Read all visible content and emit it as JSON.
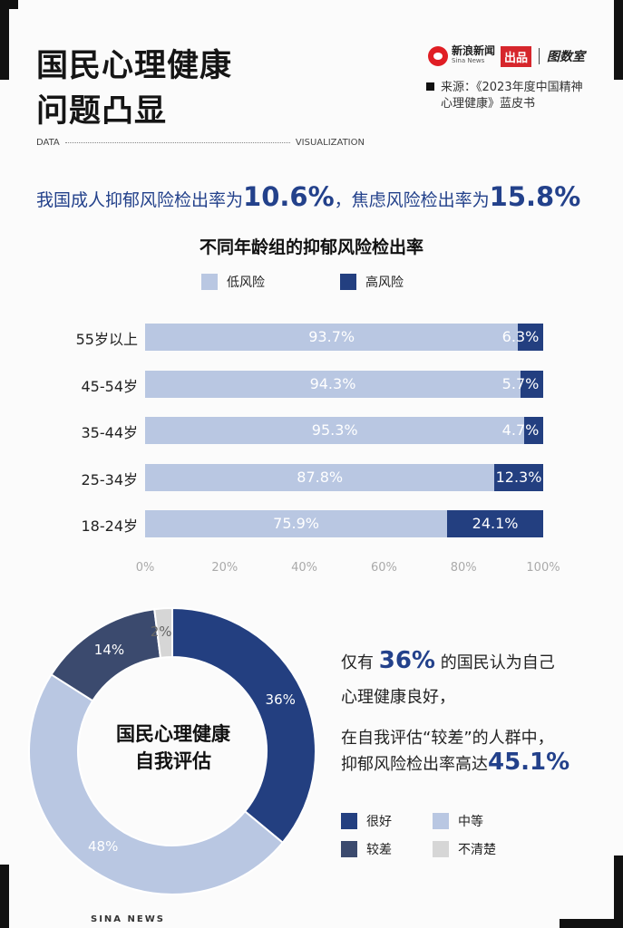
{
  "header": {
    "title_line1": "国民心理健康",
    "title_line2": "问题凸显",
    "brand_sina_cn": "新浪新闻",
    "brand_sina_en": "Sina News",
    "brand_badge": "出品",
    "brand_tushuju": "图数室",
    "source_line1": "来源：《2023年度中国精神",
    "source_line2": "心理健康》蓝皮书",
    "data_label": "DATA",
    "visualization_label": "VISUALIZATION"
  },
  "headline": {
    "part1": "我国成人抑郁风险检出率为",
    "value1": "10.6%",
    "part2": "，焦虑风险检出率为",
    "value2": "15.8%"
  },
  "bar_legend": {
    "low": "低风险",
    "high": "高风险"
  },
  "colors": {
    "low": "#b9c7e2",
    "high": "#233f80",
    "mid": "#3b4a6e",
    "unknown": "#d6d6d6",
    "accent": "#23418b"
  },
  "chart_data": [
    {
      "type": "bar",
      "orientation": "horizontal",
      "stacked": true,
      "title": "不同年龄组的抑郁风险检出率",
      "categories": [
        "55岁以上",
        "45-54岁",
        "35-44岁",
        "25-34岁",
        "18-24岁"
      ],
      "series": [
        {
          "name": "低风险",
          "values": [
            93.7,
            94.3,
            95.3,
            87.8,
            75.9
          ],
          "labels": [
            "93.7%",
            "94.3%",
            "95.3%",
            "87.8%",
            "75.9%"
          ]
        },
        {
          "name": "高风险",
          "values": [
            6.3,
            5.7,
            4.7,
            12.3,
            24.1
          ],
          "labels": [
            "6.3%",
            "5.7%",
            "4.7%",
            "12.3%",
            "24.1%"
          ]
        }
      ],
      "xlim": [
        0,
        100
      ],
      "xticks": [
        "0%",
        "20%",
        "40%",
        "60%",
        "80%",
        "100%"
      ],
      "legend": "top"
    },
    {
      "type": "pie",
      "donut": true,
      "title": "国民心理健康自我评估",
      "title_line1": "国民心理健康",
      "title_line2": "自我评估",
      "slices": [
        {
          "name": "很好",
          "value": 36,
          "label": "36%"
        },
        {
          "name": "中等",
          "value": 48,
          "label": "48%"
        },
        {
          "name": "较差",
          "value": 14,
          "label": "14%"
        },
        {
          "name": "不清楚",
          "value": 2,
          "label": "2%"
        }
      ],
      "legend": "bottom-right"
    }
  ],
  "findings": {
    "line1_pre": "仅有",
    "line1_value": "36%",
    "line1_post": "的国民认为自己",
    "line2": "心理健康良好，",
    "line3": "在自我评估“较差”的人群中，",
    "line4_pre": "抑郁风险检出率高达",
    "line4_value": "45.1%"
  },
  "pie_legend": {
    "good": "很好",
    "medium": "中等",
    "poor": "较差",
    "unknown": "不清楚"
  },
  "footer": {
    "text": "SINA  NEWS"
  }
}
